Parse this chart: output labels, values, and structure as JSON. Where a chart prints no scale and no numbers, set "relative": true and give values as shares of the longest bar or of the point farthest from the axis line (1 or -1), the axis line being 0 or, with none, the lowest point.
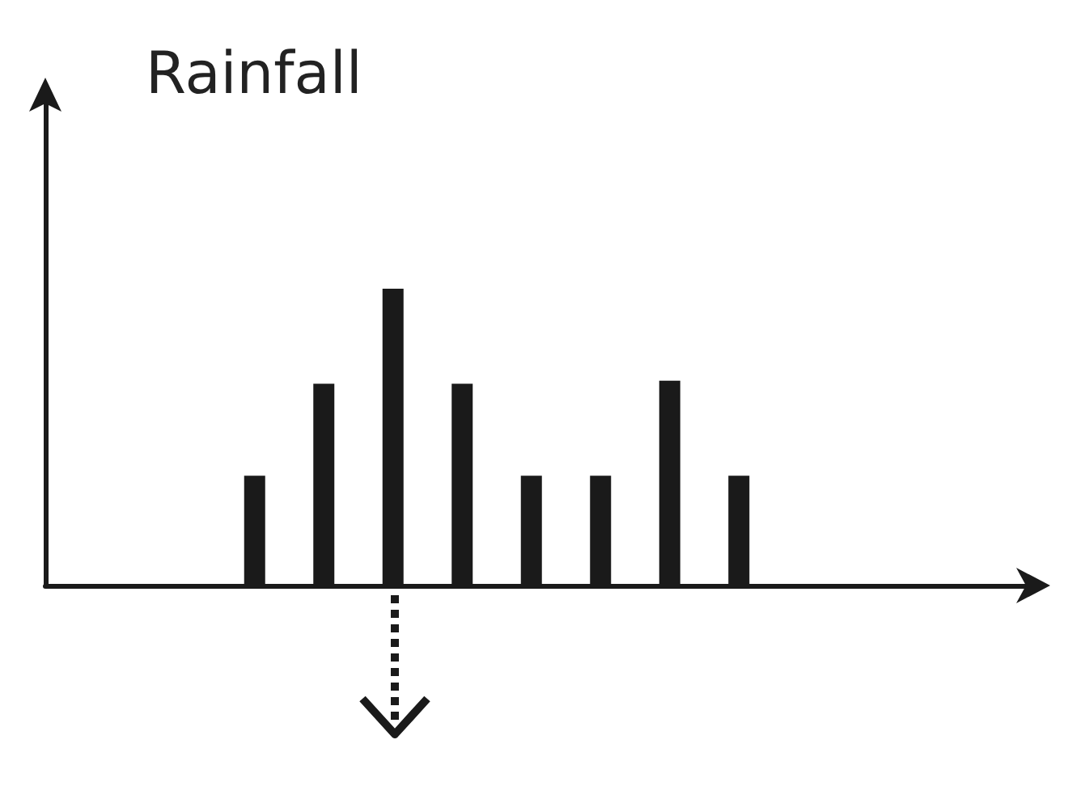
{
  "chart_data": {
    "type": "bar",
    "ylabel": "Rainfall",
    "relative": true,
    "color": "#1a1a1a",
    "categories": [
      null,
      null,
      null,
      null,
      null,
      null,
      null,
      null
    ],
    "values": [
      0.37,
      0.68,
      1,
      0.68,
      0.37,
      0.37,
      0.69,
      0.37
    ]
  }
}
